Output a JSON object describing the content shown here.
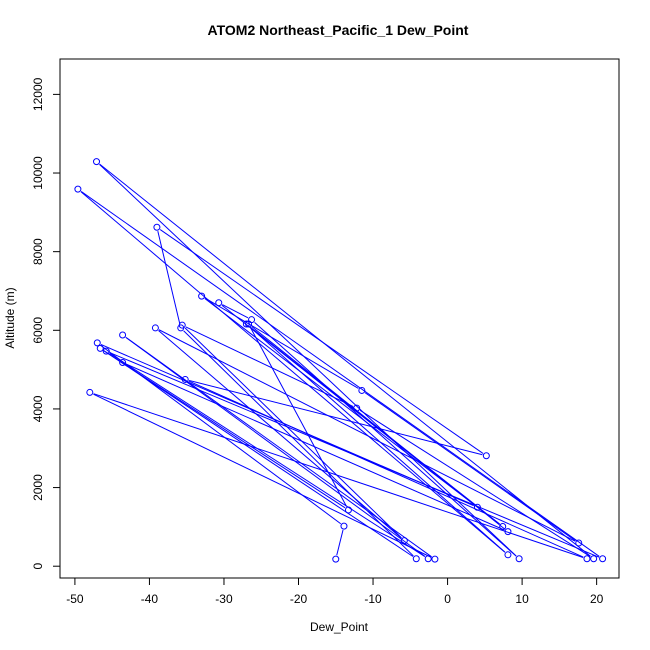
{
  "chart_data": {
    "type": "line",
    "title": "ATOM2 Northeast_Pacific_1 Dew_Point",
    "xlabel": "Dew_Point",
    "ylabel": "Altitude (m)",
    "xlim": [
      -52,
      23
    ],
    "ylim": [
      -300,
      12900
    ],
    "x_ticks": [
      -50,
      -40,
      -30,
      -20,
      -10,
      0,
      10,
      20
    ],
    "y_ticks": [
      0,
      2000,
      4000,
      6000,
      8000,
      10000,
      12000
    ],
    "grid": false,
    "legend": "none",
    "marker": "open-circle",
    "line_color": "#0000ff",
    "series": [
      {
        "x": [
          -15.0,
          -13.9,
          -47.0,
          4.0,
          -30.7,
          -26.3,
          9.6,
          -47.1,
          19.6,
          -12.2,
          -35.6,
          -5.8,
          -39.2,
          17.6,
          -11.5,
          -33.0,
          7.4,
          -27.0,
          8.1,
          -49.6,
          20.8,
          -45.8,
          -2.6,
          -43.6,
          -1.7,
          -48.0,
          18.7,
          -35.2,
          5.2,
          -39.0,
          -35.8,
          -4.2,
          -46.6,
          -13.3,
          -26.7,
          8.1,
          -43.6
        ],
        "y": [
          180,
          1020,
          5680,
          1500,
          6700,
          6270,
          190,
          10290,
          190,
          4020,
          6130,
          650,
          6060,
          590,
          4470,
          6870,
          1010,
          6160,
          290,
          9590,
          190,
          5470,
          190,
          5880,
          180,
          4420,
          190,
          4750,
          2810,
          8620,
          6060,
          190,
          5540,
          1430,
          6160,
          880,
          5180
        ]
      }
    ]
  }
}
